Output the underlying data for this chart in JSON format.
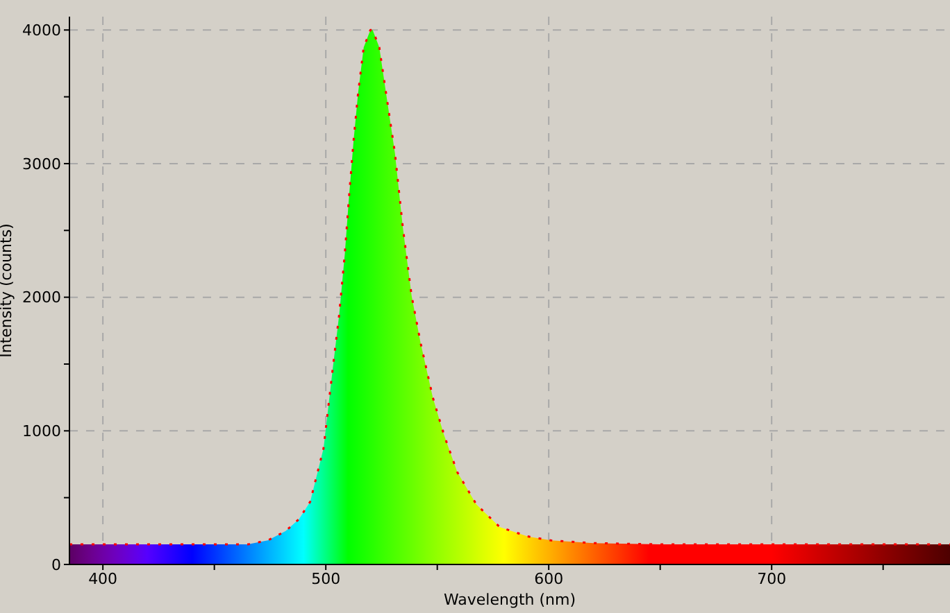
{
  "chart_data": {
    "type": "area",
    "xlabel": "Wavelength (nm)",
    "ylabel": "Intensity (counts)",
    "xlim": [
      385,
      780
    ],
    "ylim": [
      0,
      4100
    ],
    "xticks": [
      400,
      {
        "value": 450,
        "label": null
      },
      500,
      {
        "value": 550,
        "label": null
      },
      600,
      {
        "value": 650,
        "label": null
      },
      700,
      {
        "value": 750,
        "label": null
      }
    ],
    "yticks": [
      0,
      {
        "value": 500,
        "label": null
      },
      1000,
      {
        "value": 1500,
        "label": null
      },
      2000,
      {
        "value": 2500,
        "label": null
      },
      3000,
      {
        "value": 3500,
        "label": null
      },
      4000
    ],
    "grid": true,
    "legend": false,
    "line_style": "dotted",
    "series": [
      {
        "color": "#ff0000",
        "x": [
          385,
          420,
          450,
          465,
          474,
          482,
          488,
          493,
          499,
          503,
          506,
          508.5,
          510.5,
          512.5,
          514.5,
          517,
          520,
          521,
          524,
          527,
          531,
          534.5,
          538.5,
          542.5,
          548,
          553,
          559,
          567.5,
          578,
          590.5,
          601,
          620,
          650,
          700,
          780
        ],
        "values": [
          150,
          150,
          150,
          150,
          180,
          250,
          340,
          470,
          870,
          1450,
          1870,
          2320,
          2770,
          3180,
          3530,
          3870,
          4000,
          4000,
          3870,
          3530,
          3080,
          2530,
          2010,
          1660,
          1250,
          970,
          690,
          450,
          280,
          210,
          180,
          160,
          150,
          150,
          150
        ]
      }
    ]
  }
}
